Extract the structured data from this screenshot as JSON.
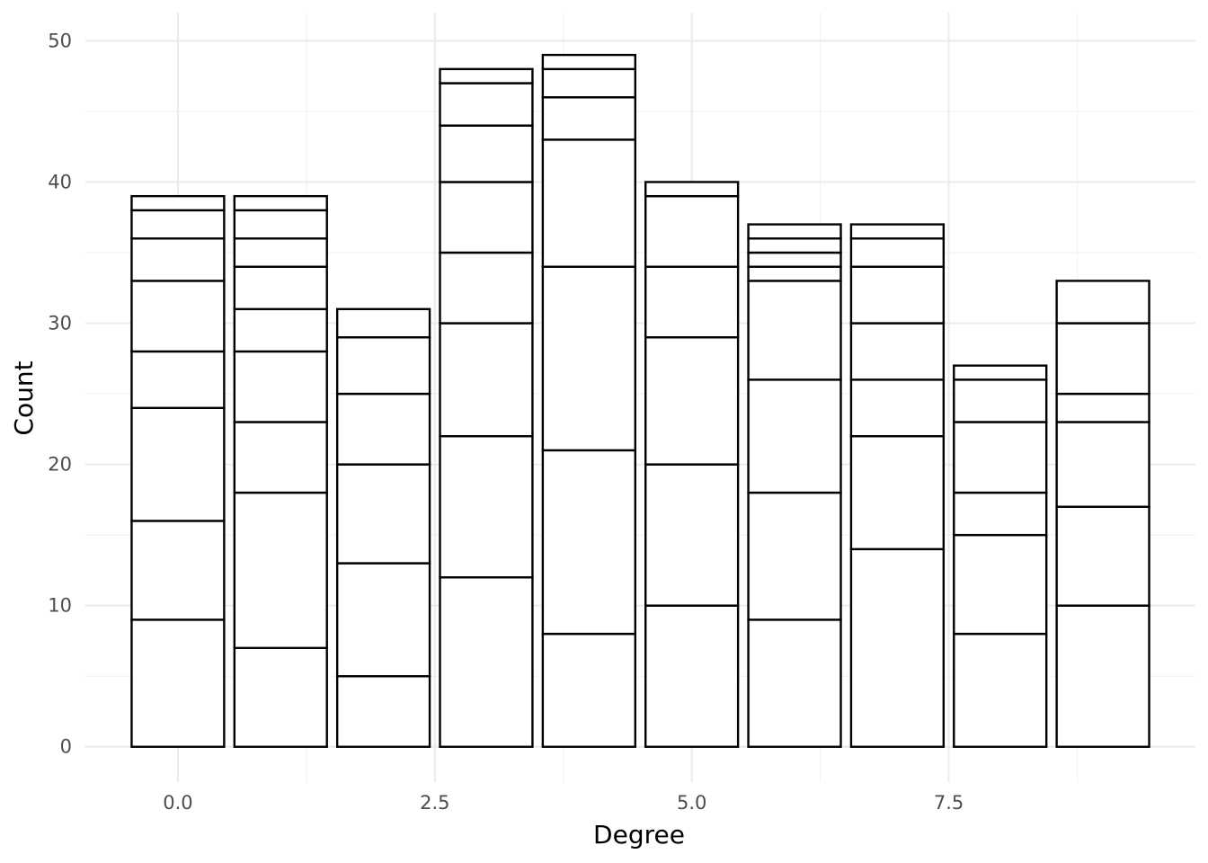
{
  "chart_data": {
    "type": "bar",
    "stacked": true,
    "title": "",
    "xlabel": "Degree",
    "ylabel": "Count",
    "xlim": [
      -0.9,
      9.9
    ],
    "ylim": [
      -2.5,
      52
    ],
    "x_ticks": [
      0.0,
      2.5,
      5.0,
      7.5
    ],
    "x_tick_labels": [
      "0.0",
      "2.5",
      "5.0",
      "7.5"
    ],
    "y_ticks": [
      0,
      10,
      20,
      30,
      40,
      50
    ],
    "y_tick_labels": [
      "0",
      "10",
      "20",
      "30",
      "40",
      "50"
    ],
    "grid": true,
    "legend": "none",
    "bar_fill": "#ffffff",
    "bar_outline": "#000000",
    "bars": [
      {
        "x": 0,
        "boundaries": [
          9,
          16,
          24,
          28,
          33,
          36,
          38,
          39
        ]
      },
      {
        "x": 1,
        "boundaries": [
          7,
          18,
          23,
          28,
          31,
          34,
          36,
          38,
          39
        ]
      },
      {
        "x": 2,
        "boundaries": [
          5,
          13,
          20,
          25,
          29,
          31
        ]
      },
      {
        "x": 3,
        "boundaries": [
          12,
          22,
          30,
          35,
          40,
          44,
          47,
          48
        ]
      },
      {
        "x": 4,
        "boundaries": [
          8,
          21,
          34,
          43,
          46,
          48,
          49
        ]
      },
      {
        "x": 5,
        "boundaries": [
          10,
          20,
          29,
          34,
          39,
          40
        ]
      },
      {
        "x": 6,
        "boundaries": [
          9,
          18,
          26,
          33,
          34,
          35,
          36,
          37
        ]
      },
      {
        "x": 7,
        "boundaries": [
          14,
          22,
          26,
          30,
          34,
          36,
          37
        ]
      },
      {
        "x": 8,
        "boundaries": [
          8,
          15,
          18,
          23,
          26,
          27
        ]
      },
      {
        "x": 9,
        "boundaries": [
          10,
          17,
          23,
          25,
          30,
          33
        ]
      }
    ]
  }
}
